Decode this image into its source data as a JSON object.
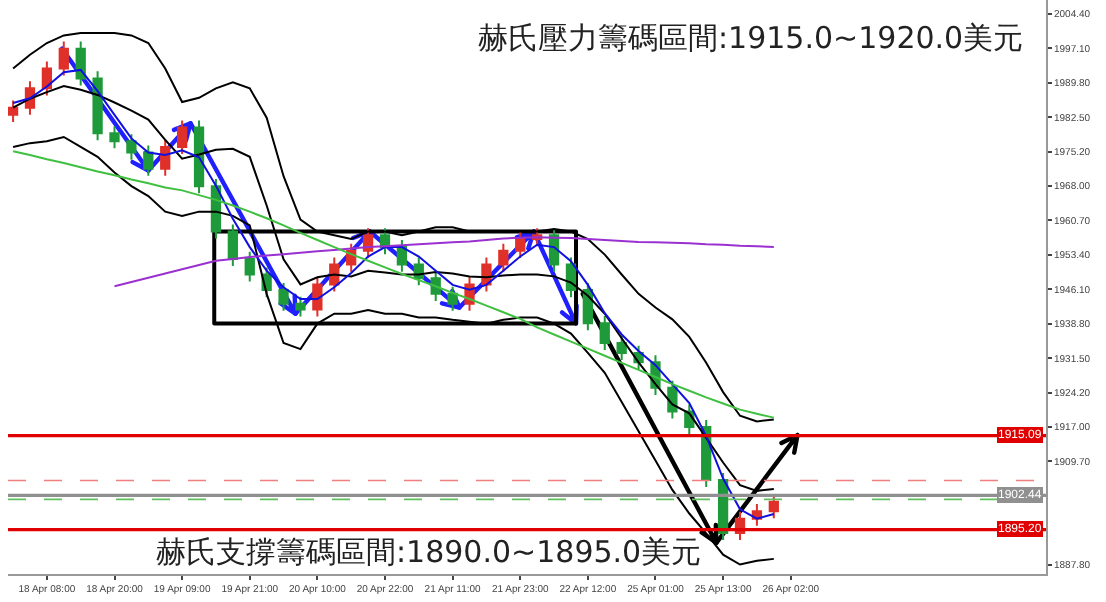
{
  "chart_data": {
    "type": "candlestick",
    "categories": [
      null,
      null,
      "18 Apr 08:00",
      null,
      null,
      null,
      "18 Apr 20:00",
      null,
      null,
      null,
      "19 Apr 09:00",
      null,
      null,
      null,
      "19 Apr 21:00",
      null,
      null,
      null,
      "20 Apr 10:00",
      null,
      null,
      null,
      "20 Apr 22:00",
      null,
      null,
      null,
      "21 Apr 11:00",
      null,
      null,
      null,
      "21 Apr 23:00",
      null,
      null,
      null,
      "22 Apr 12:00",
      null,
      null,
      null,
      "25 Apr 01:00",
      null,
      null,
      null,
      "25 Apr 13:00",
      null,
      null,
      null,
      "26 Apr 02:00"
    ],
    "ohlc": [
      [
        1983.0,
        1986.0,
        1981.5,
        1984.5
      ],
      [
        1984.5,
        1990.1,
        1983.0,
        1988.6
      ],
      [
        1988.6,
        1994.3,
        1987.1,
        1992.8
      ],
      [
        1992.8,
        1998.5,
        1991.3,
        1997.0
      ],
      [
        1997.0,
        1998.5,
        1989.2,
        1990.7
      ],
      [
        1990.7,
        1992.2,
        1977.6,
        1979.1
      ],
      [
        1979.1,
        1980.6,
        1975.9,
        1977.4
      ],
      [
        1977.4,
        1978.9,
        1973.5,
        1975.0
      ],
      [
        1975.0,
        1976.5,
        1970.1,
        1971.6
      ],
      [
        1971.6,
        1977.7,
        1970.1,
        1976.2
      ],
      [
        1976.2,
        1981.8,
        1974.7,
        1980.3
      ],
      [
        1980.3,
        1981.8,
        1966.4,
        1967.9
      ],
      [
        1967.9,
        1969.4,
        1956.8,
        1958.3
      ],
      [
        1958.3,
        1959.8,
        1951.0,
        1952.5
      ],
      [
        1952.5,
        1954.0,
        1947.7,
        1949.2
      ],
      [
        1949.2,
        1950.7,
        1944.4,
        1945.9
      ],
      [
        1945.9,
        1947.4,
        1941.5,
        1943.0
      ],
      [
        1943.0,
        1944.5,
        1940.3,
        1941.8
      ],
      [
        1941.8,
        1948.6,
        1940.3,
        1947.1
      ],
      [
        1947.1,
        1952.8,
        1945.6,
        1951.3
      ],
      [
        1951.3,
        1955.7,
        1949.8,
        1954.2
      ],
      [
        1954.2,
        1959.0,
        1952.7,
        1957.5
      ],
      [
        1957.5,
        1959.0,
        1953.5,
        1955.0
      ],
      [
        1955.0,
        1956.5,
        1949.8,
        1951.3
      ],
      [
        1951.3,
        1952.8,
        1946.9,
        1948.4
      ],
      [
        1948.4,
        1949.9,
        1943.6,
        1945.1
      ],
      [
        1945.1,
        1946.6,
        1941.5,
        1943.0
      ],
      [
        1943.0,
        1948.6,
        1941.5,
        1947.1
      ],
      [
        1947.1,
        1952.8,
        1945.6,
        1951.3
      ],
      [
        1951.3,
        1955.7,
        1949.8,
        1954.2
      ],
      [
        1954.2,
        1958.2,
        1952.7,
        1956.7
      ],
      [
        1956.7,
        1959.0,
        1955.2,
        1957.5
      ],
      [
        1957.5,
        1959.0,
        1949.8,
        1951.3
      ],
      [
        1951.3,
        1952.8,
        1944.4,
        1945.9
      ],
      [
        1945.9,
        1947.4,
        1937.4,
        1938.9
      ],
      [
        1938.9,
        1940.4,
        1933.2,
        1934.7
      ],
      [
        1934.7,
        1936.2,
        1931.1,
        1932.6
      ],
      [
        1932.6,
        1934.1,
        1929.1,
        1930.6
      ],
      [
        1930.6,
        1932.1,
        1923.7,
        1925.2
      ],
      [
        1925.2,
        1926.7,
        1918.7,
        1920.2
      ],
      [
        1920.2,
        1921.7,
        1915.4,
        1916.9
      ],
      [
        1916.9,
        1918.4,
        1904.2,
        1905.7
      ],
      [
        1905.7,
        1907.2,
        1893.0,
        1894.5
      ],
      [
        1894.5,
        1899.0,
        1893.0,
        1897.5
      ],
      [
        1897.5,
        1900.6,
        1896.0,
        1899.1
      ],
      [
        1899.1,
        1902.6,
        1897.6,
        1901.1
      ],
      null
    ],
    "colors": [
      "#e0302a",
      "#e0302a",
      "#e0302a",
      "#e0302a",
      "#1f9a3a",
      "#1f9a3a",
      "#1f9a3a",
      "#1f9a3a",
      "#1f9a3a",
      "#e0302a",
      "#e0302a",
      "#1f9a3a",
      "#1f9a3a",
      "#1f9a3a",
      "#1f9a3a",
      "#1f9a3a",
      "#1f9a3a",
      "#1f9a3a",
      "#e0302a",
      "#e0302a",
      "#e0302a",
      "#e0302a",
      "#1f9a3a",
      "#1f9a3a",
      "#1f9a3a",
      "#1f9a3a",
      "#1f9a3a",
      "#e0302a",
      "#e0302a",
      "#e0302a",
      "#e0302a",
      "#e0302a",
      "#1f9a3a",
      "#1f9a3a",
      "#1f9a3a",
      "#1f9a3a",
      "#1f9a3a",
      "#1f9a3a",
      "#1f9a3a",
      "#1f9a3a",
      "#1f9a3a",
      "#1f9a3a",
      "#1f9a3a",
      "#e0302a",
      "#e0302a",
      "#e0302a",
      null
    ],
    "series": [
      {
        "type": "line",
        "color": "#000000",
        "values": [
          1992.8,
          1995.7,
          1998.2,
          1999.8,
          2000.3,
          2000.3,
          2000.3,
          1999.8,
          1998.2,
          1992.8,
          1985.7,
          1986.6,
          1988.6,
          1989.9,
          1988.6,
          1982.4,
          1970.0,
          1960.8,
          1958.3,
          1957.5,
          1956.7,
          1958.3,
          1958.3,
          1957.5,
          1958.3,
          1959.2,
          1959.2,
          1958.3,
          1958.3,
          1958.3,
          1958.3,
          1958.3,
          1958.8,
          1958.3,
          1956.7,
          1953.4,
          1949.2,
          1945.1,
          1942.2,
          1939.7,
          1936.0,
          1930.5,
          1924.3,
          1919.3,
          1918.1,
          1918.5,
          null
        ]
      },
      {
        "type": "line",
        "color": "#000000",
        "values": [
          1984.5,
          1986.4,
          1987.8,
          1989.1,
          1988.3,
          1987.2,
          1985.6,
          1983.9,
          1982.0,
          1977.7,
          1973.7,
          1974.6,
          1975.6,
          1975.8,
          1974.1,
          1963.8,
          1952.4,
          1947.1,
          1948.6,
          1949.2,
          1948.8,
          1950.0,
          1949.6,
          1949.2,
          1949.2,
          1949.7,
          1949.4,
          1948.8,
          1948.6,
          1949.0,
          1949.2,
          1949.2,
          1948.8,
          1947.5,
          1944.7,
          1940.9,
          1935.7,
          1930.6,
          1926.0,
          1921.7,
          1919.8,
          1914.6,
          1909.4,
          1904.6,
          1903.4,
          1903.8,
          null
        ]
      },
      {
        "type": "line",
        "color": "#000000",
        "values": [
          1976.2,
          1977.0,
          1977.4,
          1978.3,
          1976.2,
          1974.1,
          1970.8,
          1967.9,
          1965.8,
          1962.5,
          1961.6,
          1962.5,
          1962.5,
          1961.6,
          1959.6,
          1945.1,
          1934.7,
          1933.4,
          1938.8,
          1940.9,
          1940.9,
          1941.7,
          1940.9,
          1940.9,
          1940.1,
          1940.1,
          1939.6,
          1939.2,
          1938.8,
          1939.6,
          1940.1,
          1940.1,
          1938.8,
          1936.7,
          1932.6,
          1928.4,
          1922.2,
          1916.0,
          1909.8,
          1903.6,
          1898.6,
          1894.4,
          1889.9,
          1887.8,
          1888.6,
          1889.0,
          null
        ]
      },
      {
        "type": "line",
        "color": "#1010e0",
        "values": [
          1985.5,
          1986.5,
          1989.0,
          1992.0,
          1992.5,
          1988.0,
          1983.0,
          1978.0,
          1975.0,
          1974.5,
          1975.5,
          1974.0,
          1968.0,
          1961.0,
          1955.0,
          1950.0,
          1946.5,
          1944.0,
          1944.0,
          1946.5,
          1949.5,
          1953.0,
          1955.0,
          1955.0,
          1953.0,
          1950.0,
          1947.0,
          1946.0,
          1947.0,
          1950.0,
          1953.0,
          1955.5,
          1955.0,
          1952.0,
          1947.0,
          1941.0,
          1936.5,
          1933.0,
          1930.0,
          1926.0,
          1922.0,
          1915.0,
          1906.0,
          1899.5,
          1897.5,
          1898.5,
          null
        ]
      },
      {
        "type": "line",
        "color": "#9b30d0",
        "values": [
          null,
          null,
          null,
          null,
          null,
          null,
          1946.7,
          1947.6,
          1948.5,
          1949.4,
          1950.3,
          1951.2,
          1952.1,
          1952.5,
          1952.9,
          1953.2,
          1953.5,
          1953.8,
          1954.1,
          1954.4,
          1954.7,
          1955.0,
          1955.2,
          1955.4,
          1955.6,
          1955.8,
          1956.0,
          1956.2,
          1956.5,
          1956.8,
          1957.0,
          1957.1,
          1957.0,
          1956.9,
          1956.7,
          1956.5,
          1956.3,
          1956.1,
          1956.0,
          1955.9,
          1955.8,
          1955.6,
          1955.5,
          1955.3,
          1955.2,
          1955.0,
          null
        ]
      },
      {
        "type": "line",
        "color": "#40c040",
        "values": [
          1975.3,
          1974.5,
          1973.6,
          1972.8,
          1971.9,
          1971.0,
          1970.2,
          1969.3,
          1968.5,
          1967.6,
          1967.0,
          1966.0,
          1965.0,
          1963.8,
          1962.5,
          1961.1,
          1959.6,
          1958.0,
          1956.5,
          1955.0,
          1953.5,
          1952.1,
          1950.7,
          1949.3,
          1948.0,
          1946.7,
          1945.3,
          1944.0,
          1942.6,
          1941.2,
          1939.8,
          1938.0,
          1936.5,
          1935.0,
          1933.5,
          1932.0,
          1930.5,
          1929.0,
          1927.5,
          1926.0,
          1924.6,
          1923.2,
          1921.9,
          1920.6,
          1919.7,
          1918.9,
          null
        ]
      }
    ],
    "ylim": [
      1885.8,
      2007.3
    ],
    "yticks": [
      {
        "value": 2004.4,
        "label": "2004.40"
      },
      {
        "value": 1997.1,
        "label": "1997.10"
      },
      {
        "value": 1989.8,
        "label": "1989.80"
      },
      {
        "value": 1982.5,
        "label": "1982.50"
      },
      {
        "value": 1975.2,
        "label": "1975.20"
      },
      {
        "value": 1968.0,
        "label": "1968.00"
      },
      {
        "value": 1960.7,
        "label": "1960.70"
      },
      {
        "value": 1953.4,
        "label": "1953.40"
      },
      {
        "value": 1946.1,
        "label": "1946.10"
      },
      {
        "value": 1938.8,
        "label": "1938.80"
      },
      {
        "value": 1931.5,
        "label": "1931.50"
      },
      {
        "value": 1924.2,
        "label": "1924.20"
      },
      {
        "value": 1917.0,
        "label": "1917.00"
      },
      {
        "value": 1909.7,
        "label": "1909.70"
      },
      {
        "value": 1887.8,
        "label": "1887.80"
      }
    ],
    "ref_lines": [
      {
        "axis": "y",
        "value": 1915.09,
        "label": "1915.09",
        "color": "#e00000"
      },
      {
        "axis": "y",
        "value": 1895.2,
        "label": "1895.20",
        "color": "#e00000"
      },
      {
        "axis": "y",
        "value": 1902.44,
        "label": "1902.44",
        "color": "#909090"
      },
      {
        "axis": "y",
        "value": 1905.6,
        "color": "#f08080",
        "line_style": "dashed"
      },
      {
        "axis": "y",
        "value": 1901.6,
        "color": "#60c060",
        "line_style": "dashed"
      }
    ],
    "annotations": [
      "赫氏壓力籌碼區間:1915.0~1920.0美元",
      "赫氏支撐籌碼區間:1890.0~1895.0美元"
    ]
  }
}
